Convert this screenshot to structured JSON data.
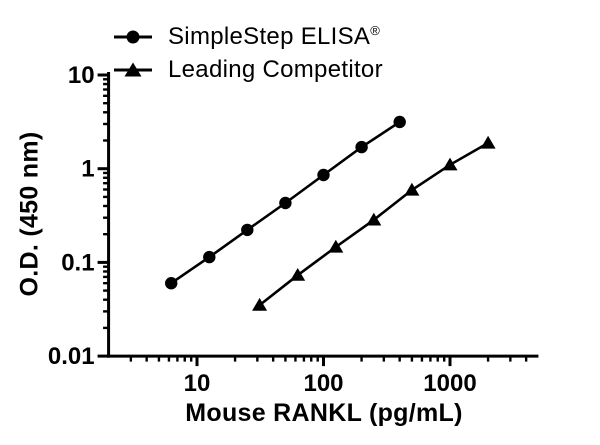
{
  "figure": {
    "background": "#ffffff",
    "ink_color": "#000000"
  },
  "legend": {
    "items": [
      {
        "label": "SimpleStep ELISA",
        "label_suffix": "®",
        "marker": "circle"
      },
      {
        "label": "Leading Competitor",
        "label_suffix": "",
        "marker": "triangle"
      }
    ]
  },
  "chart_data": {
    "type": "line",
    "x_scale": "log",
    "y_scale": "log",
    "title": "",
    "xlabel": "Mouse RANKL (pg/mL)",
    "ylabel": "O.D. (450 nm)",
    "xlim": [
      2,
      5000
    ],
    "ylim": [
      0.01,
      10
    ],
    "grid": false,
    "legend_position": "top-left",
    "x_ticks": [
      {
        "value": 10,
        "label": "10"
      },
      {
        "value": 100,
        "label": "100"
      },
      {
        "value": 1000,
        "label": "1000"
      }
    ],
    "y_ticks": [
      {
        "value": 10,
        "label": "10"
      },
      {
        "value": 1,
        "label": "1"
      },
      {
        "value": 0.1,
        "label": "0.1"
      },
      {
        "value": 0.01,
        "label": "0.01"
      }
    ],
    "series": [
      {
        "name": "SimpleStep ELISA®",
        "marker": "circle",
        "x": [
          6.25,
          12.5,
          25,
          50,
          100,
          200,
          400
        ],
        "y": [
          0.06,
          0.114,
          0.222,
          0.43,
          0.857,
          1.7,
          3.15
        ]
      },
      {
        "name": "Leading Competitor",
        "marker": "triangle",
        "x": [
          31.25,
          62.5,
          125,
          250,
          500,
          1000,
          2000
        ],
        "y": [
          0.035,
          0.073,
          0.146,
          0.284,
          0.592,
          1.1,
          1.88
        ]
      }
    ]
  }
}
